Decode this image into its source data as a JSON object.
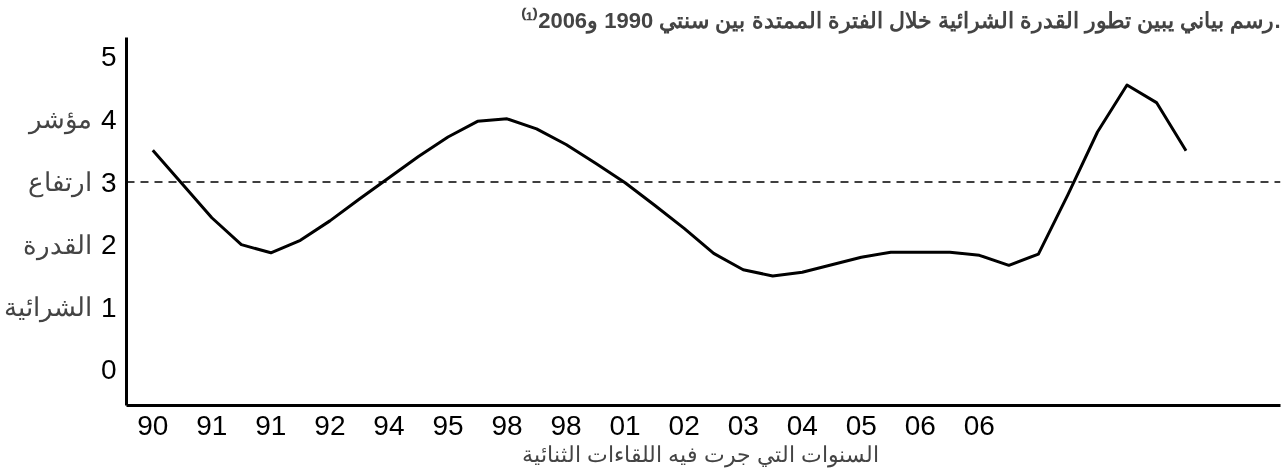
{
  "chart_data": {
    "type": "line",
    "title": "رسم بياني يبين تطور القدرة الشرائية خلال الفترة الممتدة بين سنتي 1990 و2006⁽¹⁾.",
    "xlabel": "السنوات التي جرت فيه اللقاءات  الثنائية",
    "ylabel": "مؤشر ارتفاع القدرة الشرائية",
    "categories": [
      "90",
      null,
      "91",
      null,
      "91",
      null,
      "92",
      null,
      "94",
      null,
      "95",
      null,
      "98",
      null,
      "98",
      null,
      "01",
      null,
      "02",
      null,
      "03",
      null,
      "04",
      null,
      "05",
      null,
      "06",
      null,
      "06",
      null,
      null,
      null,
      null,
      null,
      null,
      null
    ],
    "series": [
      {
        "color": "#000000",
        "values": [
          3.51,
          2.97,
          2.43,
          2.0,
          1.87,
          2.07,
          2.38,
          2.73,
          3.07,
          3.41,
          3.72,
          3.97,
          4.01,
          3.85,
          3.6,
          3.3,
          2.99,
          2.63,
          2.26,
          1.86,
          1.6,
          1.5,
          1.56,
          1.68,
          1.8,
          1.88,
          1.88,
          1.88,
          1.83,
          1.67,
          1.85,
          2.8,
          3.8,
          4.55,
          4.27,
          3.5
        ]
      }
    ],
    "ylim": [
      -0.57,
      5.31
    ],
    "yticks": [
      0,
      1,
      2,
      3,
      4,
      5
    ],
    "ref_lines": [
      {
        "axis": "y",
        "value": 3,
        "line_style": "dashed",
        "color": "#000000"
      }
    ],
    "line_style": "solid"
  }
}
